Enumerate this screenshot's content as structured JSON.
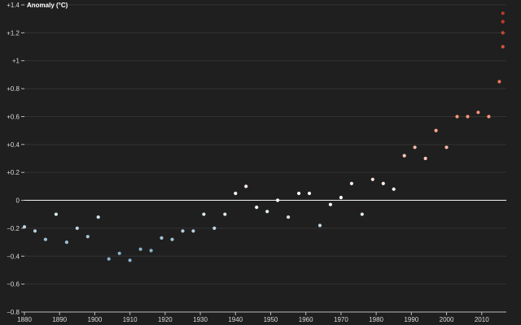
{
  "chart_data": {
    "type": "scatter",
    "title": "",
    "ylabel": "Anomaly (°C)",
    "xlabel": "",
    "xlim": [
      1880,
      2017
    ],
    "ylim": [
      -0.8,
      1.4
    ],
    "grid": true,
    "x_ticks": [
      1880,
      1890,
      1900,
      1910,
      1920,
      1930,
      1940,
      1950,
      1960,
      1970,
      1980,
      1990,
      2000,
      2010
    ],
    "x_tick_labels": [
      "1880",
      "1890",
      "1900",
      "1910",
      "1920",
      "1930",
      "1940",
      "1950",
      "1960",
      "1970",
      "1980",
      "1990",
      "2000",
      "2010"
    ],
    "y_ticks": [
      -0.8,
      -0.6,
      -0.4,
      -0.2,
      0,
      0.2,
      0.4,
      0.6,
      0.8,
      1.0,
      1.2,
      1.4
    ],
    "y_tick_labels": [
      "−0.8",
      "−0.6",
      "−0.4",
      "−0.2",
      "0",
      "+0.2",
      "+0.4",
      "+0.6",
      "+0.8",
      "+1",
      "+1.2",
      "+1.4"
    ],
    "reference_line": 0,
    "color_scale": [
      "#8ab4cc",
      "#ffffff",
      "#ff9e80",
      "#c0392b"
    ],
    "series": [
      {
        "x": [
          1880,
          1883,
          1886,
          1889,
          1892,
          1895,
          1898,
          1901,
          1904,
          1907,
          1910,
          1913,
          1916,
          1919,
          1922,
          1925,
          1928,
          1931,
          1934,
          1937,
          1940,
          1943,
          1946,
          1949,
          1952,
          1955,
          1958,
          1961,
          1964,
          1967,
          1970,
          1973,
          1976,
          1979,
          1982,
          1985,
          1988,
          1991,
          1994,
          1997,
          2000,
          2003,
          2006,
          2009,
          2012,
          2015,
          2016,
          2016,
          2016,
          2016
        ],
        "y": [
          -0.19,
          -0.22,
          -0.28,
          -0.1,
          -0.3,
          -0.2,
          -0.26,
          -0.12,
          -0.42,
          -0.38,
          -0.43,
          -0.35,
          -0.36,
          -0.27,
          -0.28,
          -0.22,
          -0.22,
          -0.1,
          -0.2,
          -0.1,
          0.05,
          0.1,
          -0.05,
          -0.08,
          0.0,
          -0.12,
          0.05,
          0.05,
          -0.18,
          -0.03,
          0.02,
          0.12,
          -0.1,
          0.15,
          0.12,
          0.08,
          0.32,
          0.38,
          0.3,
          0.5,
          0.38,
          0.6,
          0.6,
          0.63,
          0.6,
          0.85,
          1.1,
          1.2,
          1.28,
          1.34
        ]
      }
    ]
  }
}
